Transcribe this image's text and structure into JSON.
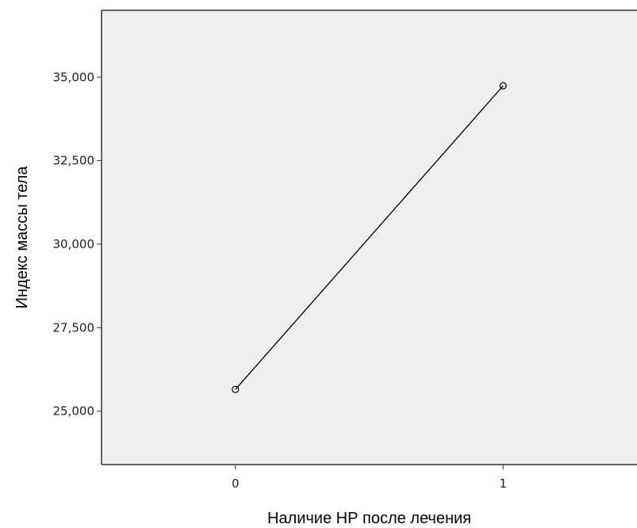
{
  "chart_data": {
    "type": "line",
    "title": "",
    "xlabel": "Наличие НР после лечения",
    "ylabel": "Индекс массы тела",
    "x_ticks": [
      {
        "value": 0,
        "label": "0"
      },
      {
        "value": 1,
        "label": "1"
      }
    ],
    "y_ticks": [
      {
        "value": 25000,
        "label": "25,000"
      },
      {
        "value": 27500,
        "label": "27,500"
      },
      {
        "value": 30000,
        "label": "30,000"
      },
      {
        "value": 32500,
        "label": "32,500"
      },
      {
        "value": 35000,
        "label": "35,000"
      }
    ],
    "xlim": [
      -0.5,
      1.5
    ],
    "ylim": [
      23400,
      37000
    ],
    "grid": false,
    "series": [
      {
        "x": [
          0,
          1
        ],
        "values": [
          25650,
          34740
        ],
        "marker": "open-circle"
      }
    ],
    "colors": {
      "plot_background": "#efefef",
      "line": "#000000",
      "axis": "#333333"
    }
  }
}
